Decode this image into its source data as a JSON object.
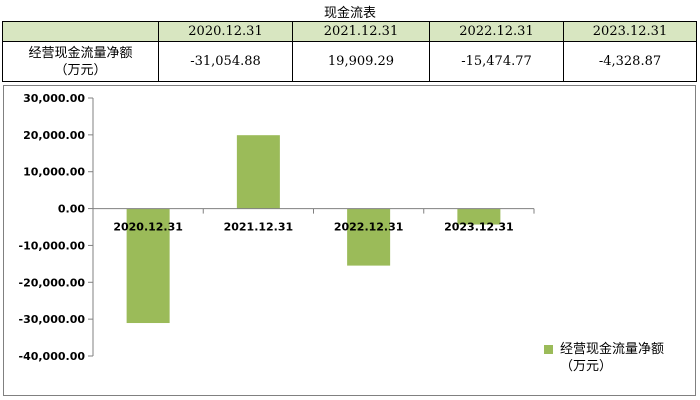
{
  "table": {
    "title": "现金流表",
    "headers": [
      "",
      "2020.12.31",
      "2021.12.31",
      "2022.12.31",
      "2023.12.31"
    ],
    "row_label_1": "经营现金流量净额",
    "row_label_2": "（万元）",
    "values": [
      "-31,054.88",
      "19,909.29",
      "-15,474.77",
      "-4,328.87"
    ]
  },
  "chart_data": {
    "type": "bar",
    "categories": [
      "2020.12.31",
      "2021.12.31",
      "2022.12.31",
      "2023.12.31"
    ],
    "series": [
      {
        "name": "经营现金流量净额（万元）",
        "values": [
          -31054.88,
          19909.29,
          -15474.77,
          -4328.87
        ],
        "color": "#9bbb59"
      }
    ],
    "ylim": [
      -40000,
      30000
    ],
    "ytick_labels": [
      "30,000.00",
      "20,000.00",
      "10,000.00",
      "0.00",
      "-10,000.00",
      "-20,000.00",
      "-30,000.00",
      "-40,000.00"
    ],
    "legend_position": "right",
    "legend_line_1": "经营现金流量净额",
    "legend_line_2": "（万元）",
    "grid": false
  }
}
